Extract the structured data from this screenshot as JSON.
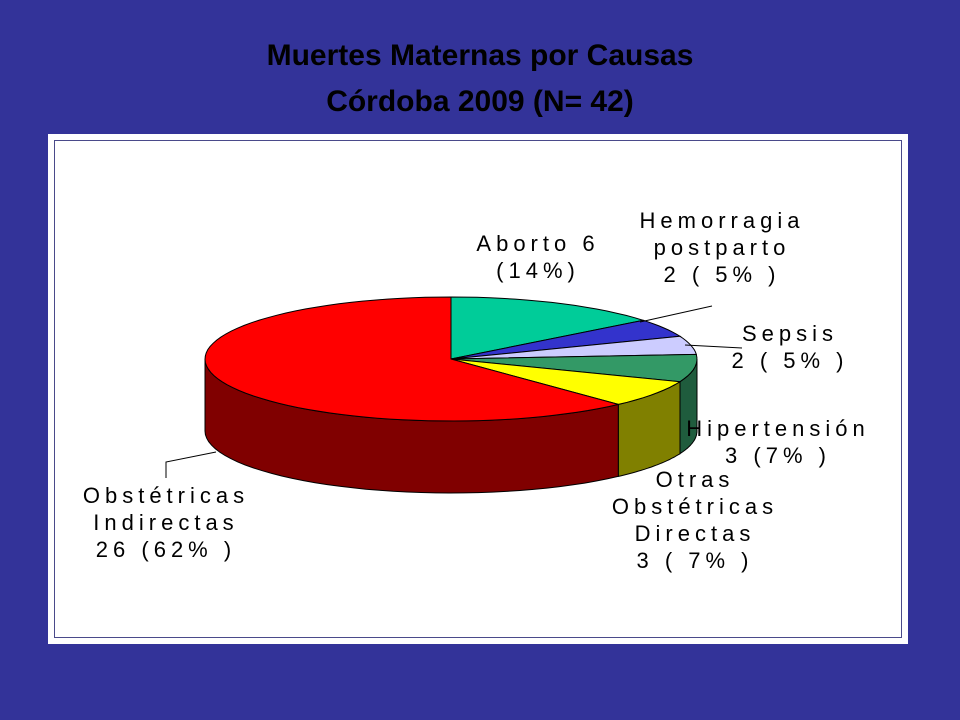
{
  "chart_data": {
    "type": "pie",
    "title": "Muertes Maternas por Causas",
    "subtitle": "Córdoba 2009 (N= 42)",
    "slices": [
      {
        "id": "aborto",
        "value": 6,
        "color": "#00CC99",
        "side": "#008866",
        "label_lines": [
          "Aborto 6",
          "(14%)"
        ]
      },
      {
        "id": "hemorragia",
        "value": 2,
        "color": "#3333CC",
        "side": "#1f1f80",
        "label_lines": [
          "Hemorragia",
          "postparto",
          "2 ( 5% )"
        ]
      },
      {
        "id": "sepsis",
        "value": 2,
        "color": "#CCCCFF",
        "side": "#8888aa",
        "label_lines": [
          "Sepsis",
          "2 ( 5% )"
        ]
      },
      {
        "id": "hipertension",
        "value": 3,
        "color": "#339966",
        "side": "#1f5c3d",
        "label_lines": [
          "Hipertensión",
          "3 (7% )"
        ]
      },
      {
        "id": "otras",
        "value": 3,
        "color": "#FFFF00",
        "side": "#808000",
        "label_lines": [
          "Otras",
          "Obstétricas",
          "Directas",
          "3 ( 7% )"
        ]
      },
      {
        "id": "indirectas",
        "value": 26,
        "color": "#FF0000",
        "side": "#800000",
        "label_lines": [
          "Obstétricas",
          "Indirectas",
          "26 (62% )"
        ]
      }
    ]
  }
}
